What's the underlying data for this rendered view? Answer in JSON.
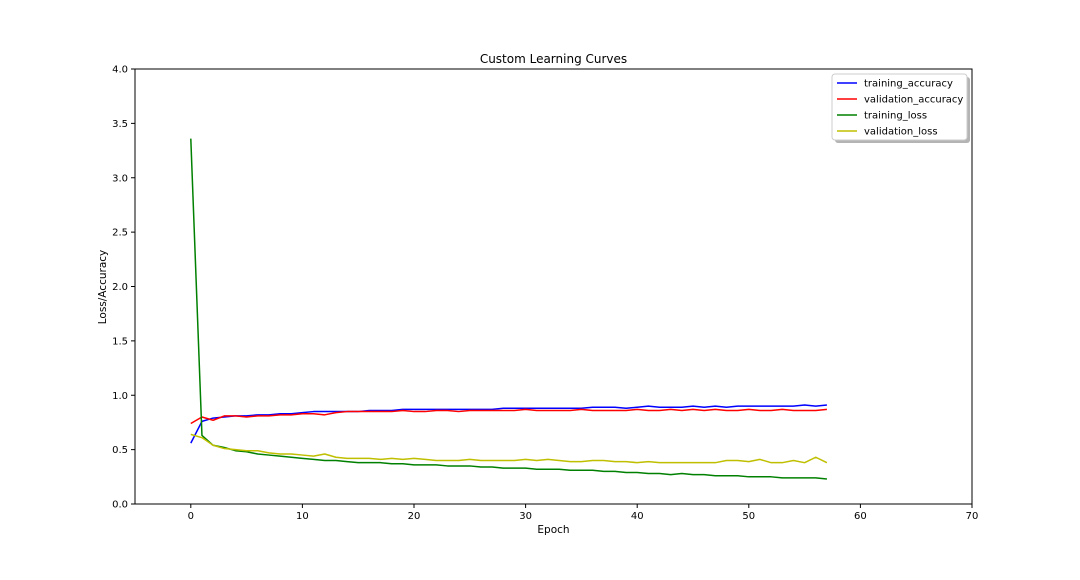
{
  "chart_data": {
    "type": "line",
    "title": "Custom Learning Curves",
    "xlabel": "Epoch",
    "ylabel": "Loss/Accuracy",
    "xlim": [
      -5,
      70
    ],
    "ylim": [
      0.0,
      4.0
    ],
    "xticks": [
      0,
      10,
      20,
      30,
      40,
      50,
      60,
      70
    ],
    "yticks": [
      0.0,
      0.5,
      1.0,
      1.5,
      2.0,
      2.5,
      3.0,
      3.5,
      4.0
    ],
    "xtick_labels": [
      "0",
      "10",
      "20",
      "30",
      "40",
      "50",
      "60",
      "70"
    ],
    "ytick_labels": [
      "0.0",
      "0.5",
      "1.0",
      "1.5",
      "2.0",
      "2.5",
      "3.0",
      "3.5",
      "4.0"
    ],
    "grid": false,
    "legend_position": "top-right",
    "x": [
      0,
      1,
      2,
      3,
      4,
      5,
      6,
      7,
      8,
      9,
      10,
      11,
      12,
      13,
      14,
      15,
      16,
      17,
      18,
      19,
      20,
      21,
      22,
      23,
      24,
      25,
      26,
      27,
      28,
      29,
      30,
      31,
      32,
      33,
      34,
      35,
      36,
      37,
      38,
      39,
      40,
      41,
      42,
      43,
      44,
      45,
      46,
      47,
      48,
      49,
      50,
      51,
      52,
      53,
      54,
      55,
      56,
      57
    ],
    "series": [
      {
        "name": "training_accuracy",
        "color": "#0000ff",
        "values": [
          0.56,
          0.76,
          0.79,
          0.8,
          0.81,
          0.81,
          0.82,
          0.82,
          0.83,
          0.83,
          0.84,
          0.85,
          0.85,
          0.85,
          0.85,
          0.85,
          0.86,
          0.86,
          0.86,
          0.87,
          0.87,
          0.87,
          0.87,
          0.87,
          0.87,
          0.87,
          0.87,
          0.87,
          0.88,
          0.88,
          0.88,
          0.88,
          0.88,
          0.88,
          0.88,
          0.88,
          0.89,
          0.89,
          0.89,
          0.88,
          0.89,
          0.9,
          0.89,
          0.89,
          0.89,
          0.9,
          0.89,
          0.9,
          0.89,
          0.9,
          0.9,
          0.9,
          0.9,
          0.9,
          0.9,
          0.91,
          0.9,
          0.91
        ]
      },
      {
        "name": "validation_accuracy",
        "color": "#ff0000",
        "values": [
          0.74,
          0.8,
          0.77,
          0.81,
          0.81,
          0.8,
          0.81,
          0.81,
          0.82,
          0.82,
          0.83,
          0.83,
          0.82,
          0.84,
          0.85,
          0.85,
          0.85,
          0.85,
          0.85,
          0.86,
          0.85,
          0.85,
          0.86,
          0.86,
          0.85,
          0.86,
          0.86,
          0.86,
          0.86,
          0.86,
          0.87,
          0.86,
          0.86,
          0.86,
          0.86,
          0.87,
          0.86,
          0.86,
          0.86,
          0.86,
          0.87,
          0.86,
          0.86,
          0.87,
          0.86,
          0.87,
          0.86,
          0.87,
          0.86,
          0.86,
          0.87,
          0.86,
          0.86,
          0.87,
          0.86,
          0.86,
          0.86,
          0.87
        ]
      },
      {
        "name": "training_loss",
        "color": "#008000",
        "values": [
          3.36,
          0.63,
          0.54,
          0.52,
          0.49,
          0.48,
          0.46,
          0.45,
          0.44,
          0.43,
          0.42,
          0.41,
          0.4,
          0.4,
          0.39,
          0.38,
          0.38,
          0.38,
          0.37,
          0.37,
          0.36,
          0.36,
          0.36,
          0.35,
          0.35,
          0.35,
          0.34,
          0.34,
          0.33,
          0.33,
          0.33,
          0.32,
          0.32,
          0.32,
          0.31,
          0.31,
          0.31,
          0.3,
          0.3,
          0.29,
          0.29,
          0.28,
          0.28,
          0.27,
          0.28,
          0.27,
          0.27,
          0.26,
          0.26,
          0.26,
          0.25,
          0.25,
          0.25,
          0.24,
          0.24,
          0.24,
          0.24,
          0.23
        ]
      },
      {
        "name": "validation_loss",
        "color": "#bfbf00",
        "values": [
          0.64,
          0.61,
          0.54,
          0.51,
          0.5,
          0.49,
          0.49,
          0.47,
          0.46,
          0.46,
          0.45,
          0.44,
          0.46,
          0.43,
          0.42,
          0.42,
          0.42,
          0.41,
          0.42,
          0.41,
          0.42,
          0.41,
          0.4,
          0.4,
          0.4,
          0.41,
          0.4,
          0.4,
          0.4,
          0.4,
          0.41,
          0.4,
          0.41,
          0.4,
          0.39,
          0.39,
          0.4,
          0.4,
          0.39,
          0.39,
          0.38,
          0.39,
          0.38,
          0.38,
          0.38,
          0.38,
          0.38,
          0.38,
          0.4,
          0.4,
          0.39,
          0.41,
          0.38,
          0.38,
          0.4,
          0.38,
          0.43,
          0.38
        ]
      }
    ]
  }
}
